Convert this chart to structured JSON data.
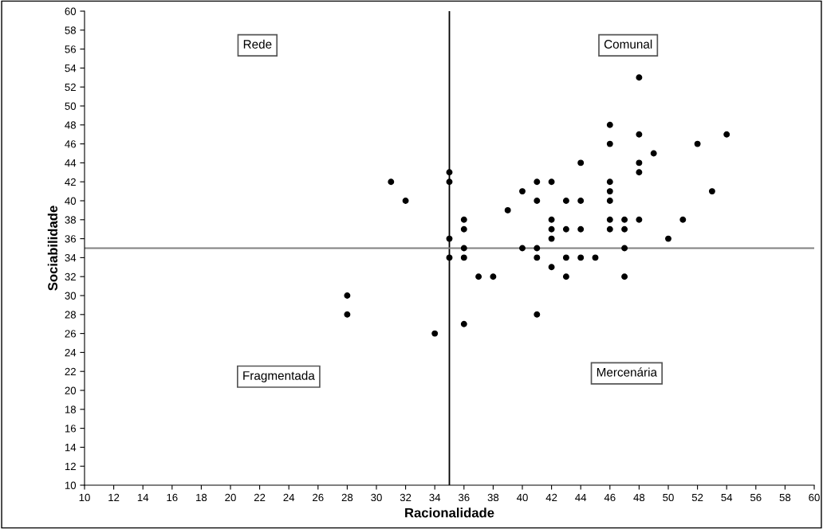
{
  "chart_data": {
    "type": "scatter",
    "xlabel": "Racionalidade",
    "ylabel": "Sociabilidade",
    "annotations": [
      "Rede",
      "Comunal",
      "Fragmentada",
      "Mercenária"
    ],
    "series": [
      {
        "color": "#000000",
        "x": [
          28,
          28,
          31,
          32,
          34,
          35,
          35,
          35,
          35,
          36,
          36,
          36,
          36,
          36,
          37,
          38,
          39,
          40,
          40,
          41,
          41,
          41,
          41,
          41,
          42,
          42,
          42,
          42,
          42,
          43,
          43,
          43,
          43,
          44,
          44,
          44,
          44,
          45,
          46,
          46,
          46,
          46,
          46,
          46,
          46,
          47,
          47,
          47,
          47,
          48,
          48,
          48,
          48,
          48,
          49,
          50,
          51,
          52,
          53,
          54
        ],
        "values": [
          30,
          28,
          42,
          40,
          26,
          43,
          42,
          36,
          34,
          38,
          37,
          35,
          34,
          27,
          32,
          32,
          39,
          41,
          35,
          42,
          40,
          35,
          34,
          28,
          42,
          38,
          37,
          36,
          33,
          40,
          37,
          34,
          32,
          44,
          40,
          37,
          34,
          34,
          48,
          46,
          42,
          41,
          40,
          38,
          37,
          38,
          37,
          35,
          32,
          53,
          47,
          44,
          43,
          38,
          45,
          36,
          38,
          46,
          41,
          47
        ]
      }
    ],
    "xlim": [
      10,
      60
    ],
    "ylim": [
      10,
      60
    ],
    "xticks": [
      10,
      12,
      14,
      16,
      18,
      20,
      22,
      24,
      26,
      28,
      30,
      32,
      34,
      36,
      38,
      40,
      42,
      44,
      46,
      48,
      50,
      52,
      54,
      56,
      58,
      60
    ],
    "yticks": [
      10,
      12,
      14,
      16,
      18,
      20,
      22,
      24,
      26,
      28,
      30,
      32,
      34,
      36,
      38,
      40,
      42,
      44,
      46,
      48,
      50,
      52,
      54,
      56,
      58,
      60
    ],
    "ref_lines": [
      {
        "axis": "x",
        "value": 35,
        "color": "#000000"
      },
      {
        "axis": "y",
        "value": 35,
        "color": "#808080"
      }
    ],
    "grid": false,
    "legend": false,
    "marker": "circle"
  }
}
